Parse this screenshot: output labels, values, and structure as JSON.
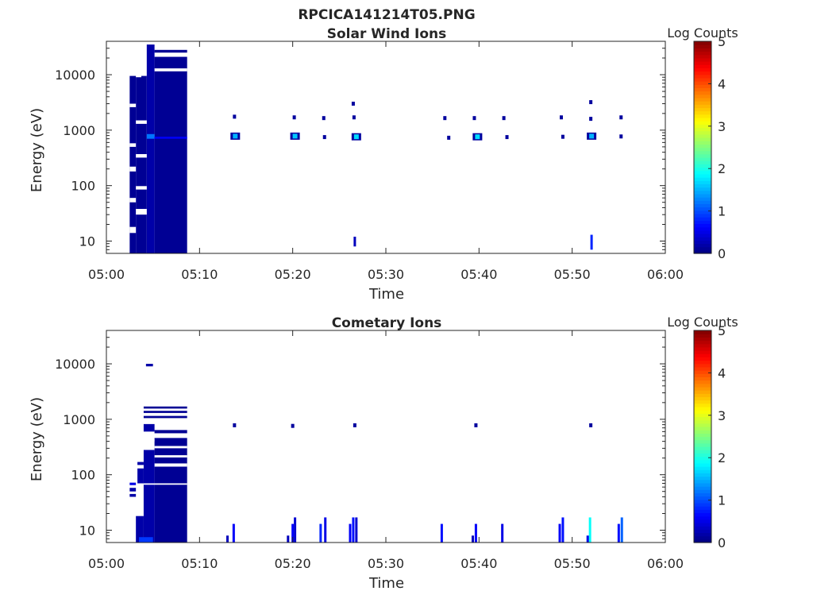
{
  "figure": {
    "filename": "RPCICA141214T05.PNG"
  },
  "colorbar": {
    "label": "Log Counts",
    "min": 0,
    "max": 5,
    "ticks": [
      "0",
      "1",
      "2",
      "3",
      "4",
      "5"
    ],
    "colormap": "jet"
  },
  "chart_data": [
    {
      "type": "heatmap",
      "title": "Solar Wind Ions",
      "xlabel": "Time",
      "ylabel": "Energy (eV)",
      "yscale": "log",
      "xlim": [
        "05:00",
        "06:00"
      ],
      "ylim_eV": [
        6,
        40000
      ],
      "xticks": [
        "05:00",
        "05:10",
        "05:20",
        "05:30",
        "05:40",
        "05:50",
        "06:00"
      ],
      "yticks": [
        {
          "value": 10,
          "label": "10"
        },
        {
          "value": 100,
          "label": "100"
        },
        {
          "value": 1000,
          "label": "1000"
        },
        {
          "value": 10000,
          "label": "10000"
        }
      ],
      "blocks": [
        {
          "t0": "05:02:30",
          "t1": "05:03:10",
          "e0": 6,
          "e1": 9500,
          "log_counts": 0.1
        },
        {
          "t0": "05:03:10",
          "t1": "05:03:45",
          "e0": 6,
          "e1": 9000,
          "log_counts": 0.1
        },
        {
          "t0": "05:03:45",
          "t1": "05:04:20",
          "e0": 6,
          "e1": 9500,
          "log_counts": 0.1
        },
        {
          "t0": "05:04:20",
          "t1": "05:05:10",
          "e0": 6,
          "e1": 35000,
          "log_counts": 0.2
        },
        {
          "t0": "05:05:10",
          "t1": "05:08:40",
          "e0": 6,
          "e1": 21000,
          "log_counts": 0.1
        },
        {
          "t0": "05:05:10",
          "t1": "05:08:40",
          "e0": 25000,
          "e1": 28000,
          "log_counts": 0.1
        },
        {
          "t0": "05:04:20",
          "t1": "05:05:10",
          "e0": 700,
          "e1": 850,
          "log_counts": 1.2
        },
        {
          "t0": "05:05:10",
          "t1": "05:08:40",
          "e0": 700,
          "e1": 760,
          "log_counts": 0.6
        }
      ],
      "gaps": [
        {
          "t0": "05:02:30",
          "t1": "05:03:10",
          "e0": 14,
          "e1": 18
        },
        {
          "t0": "05:02:30",
          "t1": "05:03:10",
          "e0": 50,
          "e1": 60
        },
        {
          "t0": "05:02:30",
          "t1": "05:03:10",
          "e0": 180,
          "e1": 220
        },
        {
          "t0": "05:02:30",
          "t1": "05:03:10",
          "e0": 500,
          "e1": 580
        },
        {
          "t0": "05:02:30",
          "t1": "05:03:10",
          "e0": 2600,
          "e1": 3000
        },
        {
          "t0": "05:03:10",
          "t1": "05:04:20",
          "e0": 30,
          "e1": 38
        },
        {
          "t0": "05:03:10",
          "t1": "05:04:20",
          "e0": 85,
          "e1": 98
        },
        {
          "t0": "05:03:10",
          "t1": "05:04:20",
          "e0": 320,
          "e1": 370
        },
        {
          "t0": "05:03:10",
          "t1": "05:04:20",
          "e0": 1300,
          "e1": 1500
        },
        {
          "t0": "05:05:10",
          "t1": "05:08:40",
          "e0": 11500,
          "e1": 13000
        }
      ],
      "spots": [
        {
          "t": "05:13:45",
          "e": 1750,
          "log_counts": 0.3
        },
        {
          "t": "05:13:50",
          "e": 780,
          "log_counts": 1.5
        },
        {
          "t": "05:20:10",
          "e": 1700,
          "log_counts": 0.4
        },
        {
          "t": "05:20:15",
          "e": 780,
          "log_counts": 1.6
        },
        {
          "t": "05:23:20",
          "e": 1650,
          "log_counts": 0.6
        },
        {
          "t": "05:23:25",
          "e": 750,
          "log_counts": 0.3
        },
        {
          "t": "05:26:30",
          "e": 3000,
          "log_counts": 0.2
        },
        {
          "t": "05:26:35",
          "e": 1700,
          "log_counts": 0.7
        },
        {
          "t": "05:26:50",
          "e": 760,
          "log_counts": 1.7
        },
        {
          "t": "05:36:20",
          "e": 1650,
          "log_counts": 0.8
        },
        {
          "t": "05:36:45",
          "e": 730,
          "log_counts": 0.3
        },
        {
          "t": "05:39:30",
          "e": 1650,
          "log_counts": 0.8
        },
        {
          "t": "05:39:50",
          "e": 760,
          "log_counts": 1.7
        },
        {
          "t": "05:42:40",
          "e": 1650,
          "log_counts": 0.5
        },
        {
          "t": "05:43:00",
          "e": 750,
          "log_counts": 0.4
        },
        {
          "t": "05:48:50",
          "e": 1700,
          "log_counts": 0.4
        },
        {
          "t": "05:49:00",
          "e": 760,
          "log_counts": 0.3
        },
        {
          "t": "05:52:00",
          "e": 3200,
          "log_counts": 0.2
        },
        {
          "t": "05:52:00",
          "e": 1600,
          "log_counts": 0.4
        },
        {
          "t": "05:52:05",
          "e": 780,
          "log_counts": 1.5
        },
        {
          "t": "05:55:15",
          "e": 1700,
          "log_counts": 0.3
        },
        {
          "t": "05:55:15",
          "e": 770,
          "log_counts": 0.3
        }
      ],
      "lines": [
        {
          "t": "05:26:40",
          "e0": 8,
          "e1": 12,
          "log_counts": 0.3
        },
        {
          "t": "05:52:05",
          "e0": 7,
          "e1": 13,
          "log_counts": 0.8
        }
      ]
    },
    {
      "type": "heatmap",
      "title": "Cometary Ions",
      "xlabel": "Time",
      "ylabel": "Energy (eV)",
      "yscale": "log",
      "xlim": [
        "05:00",
        "06:00"
      ],
      "ylim_eV": [
        6,
        40000
      ],
      "xticks": [
        "05:00",
        "05:10",
        "05:20",
        "05:30",
        "05:40",
        "05:50",
        "06:00"
      ],
      "yticks": [
        {
          "value": 10,
          "label": "10"
        },
        {
          "value": 100,
          "label": "100"
        },
        {
          "value": 1000,
          "label": "1000"
        },
        {
          "value": 10000,
          "label": "10000"
        }
      ],
      "blocks": [
        {
          "t0": "05:02:30",
          "t1": "05:03:10",
          "e0": 40,
          "e1": 45,
          "log_counts": 0.2
        },
        {
          "t0": "05:02:30",
          "t1": "05:03:10",
          "e0": 50,
          "e1": 58,
          "log_counts": 0.2
        },
        {
          "t0": "05:02:30",
          "t1": "05:03:10",
          "e0": 65,
          "e1": 72,
          "log_counts": 0.5
        },
        {
          "t0": "05:03:10",
          "t1": "05:04:00",
          "e0": 6,
          "e1": 18,
          "log_counts": 0.2
        },
        {
          "t0": "05:03:20",
          "t1": "05:04:00",
          "e0": 70,
          "e1": 130,
          "log_counts": 0.2
        },
        {
          "t0": "05:03:20",
          "t1": "05:04:00",
          "e0": 150,
          "e1": 170,
          "log_counts": 0.2
        },
        {
          "t0": "05:04:00",
          "t1": "05:05:10",
          "e0": 6,
          "e1": 280,
          "log_counts": 0.2
        },
        {
          "t0": "05:05:10",
          "t1": "05:08:40",
          "e0": 6,
          "e1": 460,
          "log_counts": 0.1
        },
        {
          "t0": "05:04:00",
          "t1": "05:05:10",
          "e0": 600,
          "e1": 820,
          "log_counts": 0.2
        },
        {
          "t0": "05:05:10",
          "t1": "05:08:40",
          "e0": 560,
          "e1": 640,
          "log_counts": 0.1
        },
        {
          "t0": "05:04:00",
          "t1": "05:08:40",
          "e0": 1050,
          "e1": 1150,
          "log_counts": 0.1
        },
        {
          "t0": "05:04:00",
          "t1": "05:08:40",
          "e0": 1300,
          "e1": 1420,
          "log_counts": 0.1
        },
        {
          "t0": "05:04:00",
          "t1": "05:08:40",
          "e0": 1560,
          "e1": 1700,
          "log_counts": 0.1
        },
        {
          "t0": "05:04:15",
          "t1": "05:05:00",
          "e0": 9000,
          "e1": 10000,
          "log_counts": 0.2
        },
        {
          "t0": "05:03:30",
          "t1": "05:05:00",
          "e0": 6,
          "e1": 7.5,
          "log_counts": 0.9
        }
      ],
      "gaps": [
        {
          "t0": "05:05:10",
          "t1": "05:08:40",
          "e0": 140,
          "e1": 160
        },
        {
          "t0": "05:05:10",
          "t1": "05:08:40",
          "e0": 205,
          "e1": 225
        },
        {
          "t0": "05:05:10",
          "t1": "05:08:40",
          "e0": 300,
          "e1": 330
        },
        {
          "t0": "05:04:00",
          "t1": "05:05:10",
          "e0": 400,
          "e1": 440
        },
        {
          "t0": "05:04:00",
          "t1": "05:08:40",
          "e0": 66,
          "e1": 70
        }
      ],
      "spots": [
        {
          "t": "05:13:45",
          "e": 780,
          "log_counts": 0.3
        },
        {
          "t": "05:20:00",
          "e": 760,
          "log_counts": 0.2
        },
        {
          "t": "05:26:40",
          "e": 780,
          "log_counts": 0.3
        },
        {
          "t": "05:39:40",
          "e": 780,
          "log_counts": 0.3
        },
        {
          "t": "05:52:00",
          "e": 780,
          "log_counts": 0.3
        }
      ],
      "lines": [
        {
          "t": "05:13:00",
          "e0": 6,
          "e1": 8,
          "log_counts": 0.3
        },
        {
          "t": "05:13:40",
          "e0": 6,
          "e1": 13,
          "log_counts": 0.6
        },
        {
          "t": "05:19:30",
          "e0": 6,
          "e1": 8,
          "log_counts": 0.3
        },
        {
          "t": "05:20:00",
          "e0": 6,
          "e1": 13,
          "log_counts": 0.6
        },
        {
          "t": "05:20:15",
          "e0": 6,
          "e1": 17,
          "log_counts": 0.4
        },
        {
          "t": "05:23:00",
          "e0": 6,
          "e1": 13,
          "log_counts": 0.8
        },
        {
          "t": "05:23:30",
          "e0": 6,
          "e1": 17,
          "log_counts": 0.5
        },
        {
          "t": "05:26:10",
          "e0": 6,
          "e1": 13,
          "log_counts": 0.6
        },
        {
          "t": "05:26:30",
          "e0": 6,
          "e1": 17,
          "log_counts": 0.7
        },
        {
          "t": "05:26:50",
          "e0": 6,
          "e1": 17,
          "log_counts": 0.4
        },
        {
          "t": "05:36:00",
          "e0": 6,
          "e1": 13,
          "log_counts": 0.7
        },
        {
          "t": "05:39:20",
          "e0": 6,
          "e1": 8,
          "log_counts": 0.3
        },
        {
          "t": "05:39:40",
          "e0": 6,
          "e1": 13,
          "log_counts": 0.6
        },
        {
          "t": "05:42:30",
          "e0": 6,
          "e1": 13,
          "log_counts": 0.5
        },
        {
          "t": "05:48:40",
          "e0": 6,
          "e1": 13,
          "log_counts": 0.6
        },
        {
          "t": "05:49:00",
          "e0": 6,
          "e1": 17,
          "log_counts": 0.7
        },
        {
          "t": "05:51:55",
          "e0": 6,
          "e1": 17,
          "log_counts": 1.9
        },
        {
          "t": "05:51:40",
          "e0": 6,
          "e1": 8,
          "log_counts": 0.5
        },
        {
          "t": "05:55:00",
          "e0": 6,
          "e1": 13,
          "log_counts": 0.7
        },
        {
          "t": "05:55:20",
          "e0": 6,
          "e1": 17,
          "log_counts": 1.1
        }
      ]
    }
  ]
}
